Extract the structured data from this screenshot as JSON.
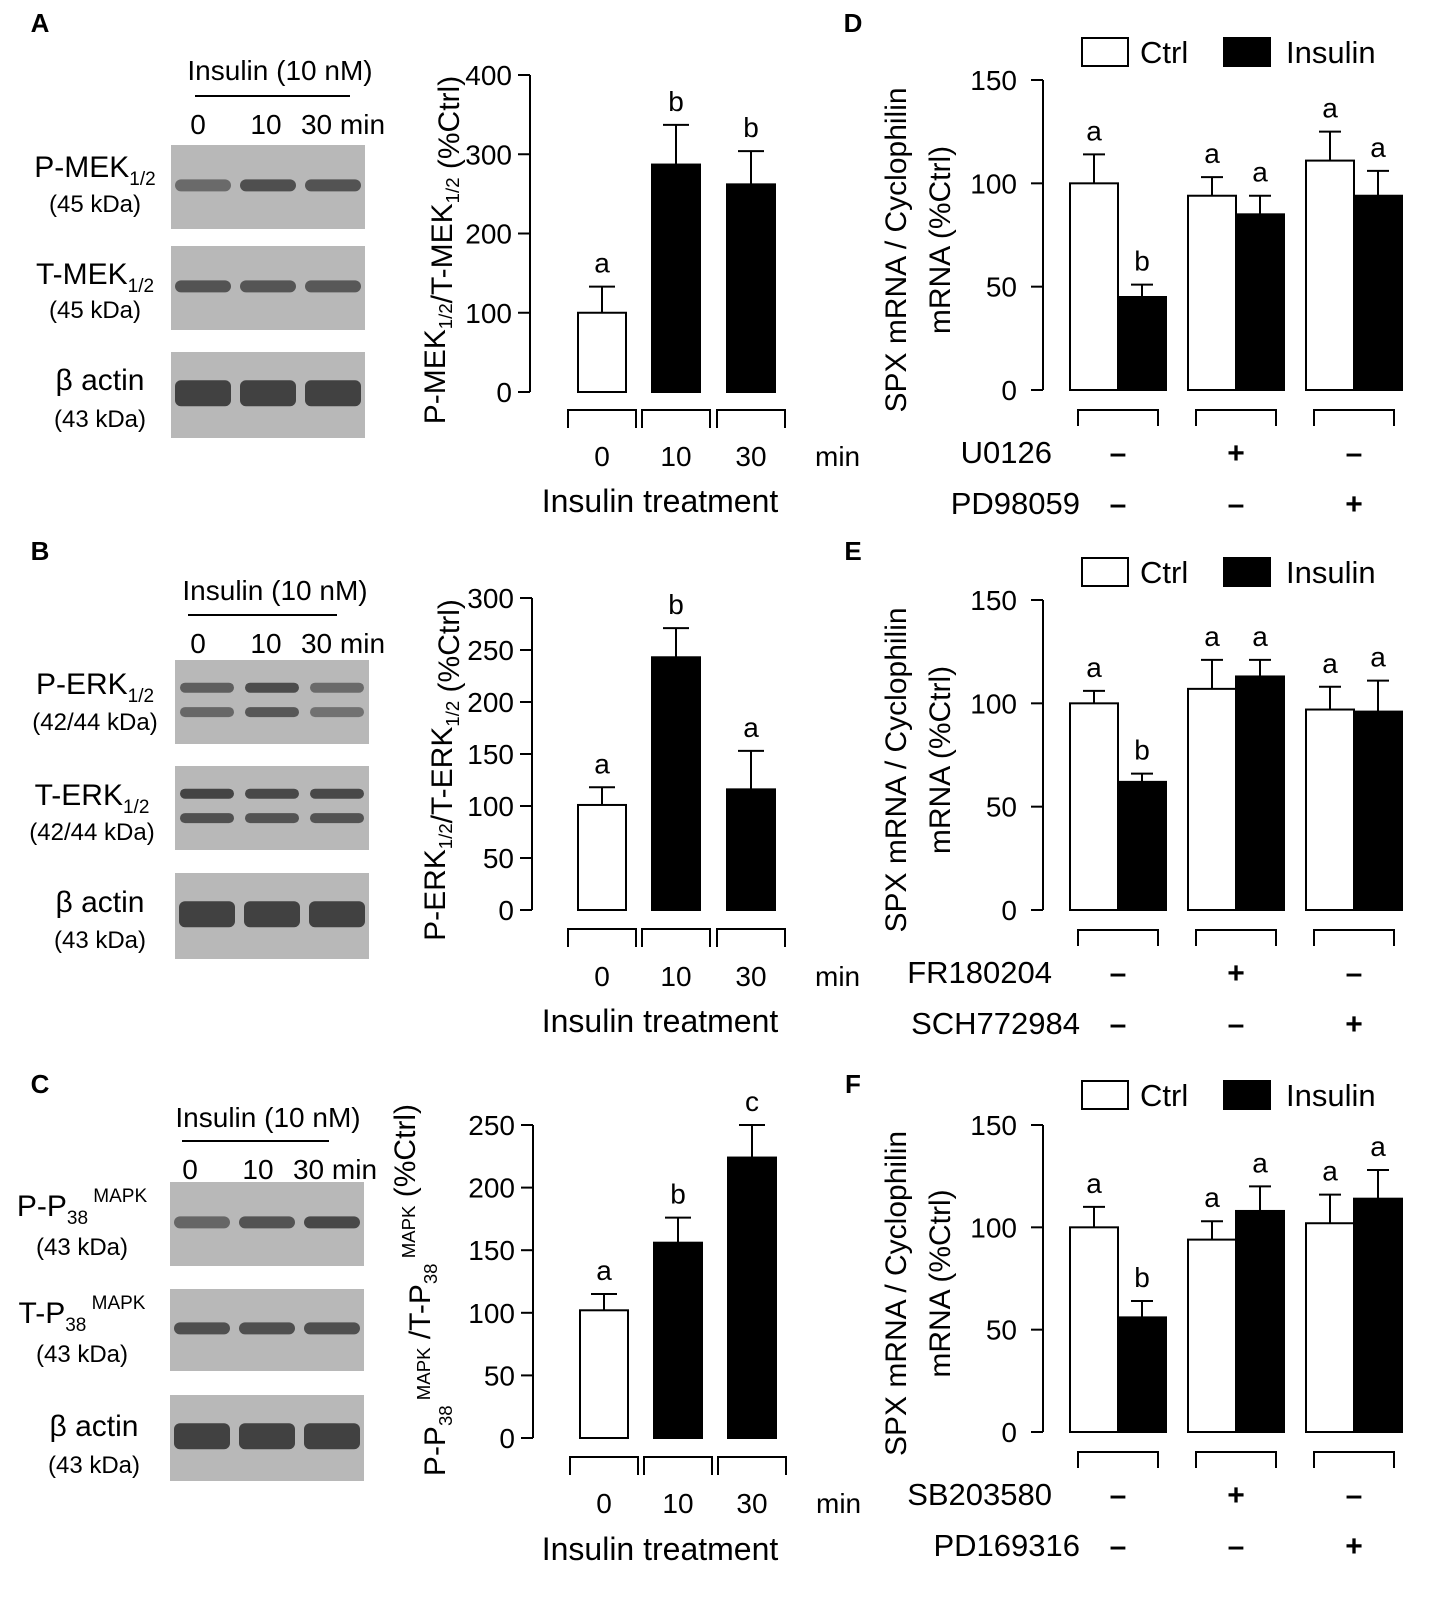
{
  "colors": {
    "ctrl": "#ffffff",
    "insulin": "#000000",
    "axis": "#000000",
    "band": "#3a3a3a",
    "blot_bg": "#b8b8b8"
  },
  "blot_panels": [
    {
      "letter": "A",
      "header": "Insulin (10 nM)",
      "lanes": [
        "0",
        "10",
        "30 min"
      ],
      "rows": [
        {
          "label": "P-MEK",
          "sub": "1/2",
          "sup": "",
          "kda": "(45 kDa)",
          "intensity": [
            0.45,
            0.8,
            0.75
          ],
          "double": false
        },
        {
          "label": "T-MEK",
          "sub": "1/2",
          "sup": "",
          "kda": "(45 kDa)",
          "intensity": [
            0.75,
            0.72,
            0.7
          ],
          "double": false
        },
        {
          "label": "β actin",
          "sub": "",
          "sup": "",
          "kda": "(43 kDa)",
          "intensity": [
            1,
            1,
            1
          ],
          "double": false
        }
      ]
    },
    {
      "letter": "B",
      "header": "Insulin (10 nM)",
      "lanes": [
        "0",
        "10",
        "30 min"
      ],
      "rows": [
        {
          "label": "P-ERK",
          "sub": "1/2",
          "sup": "",
          "kda": "(42/44 kDa)",
          "intensity": [
            0.6,
            0.85,
            0.45
          ],
          "double": true
        },
        {
          "label": "T-ERK",
          "sub": "1/2",
          "sup": "",
          "kda": "(42/44 kDa)",
          "intensity": [
            0.95,
            0.9,
            0.9
          ],
          "double": true
        },
        {
          "label": "β actin",
          "sub": "",
          "sup": "",
          "kda": "(43 kDa)",
          "intensity": [
            1,
            1,
            1
          ],
          "double": false
        }
      ]
    },
    {
      "letter": "C",
      "header": "Insulin (10 nM)",
      "lanes": [
        "0",
        "10",
        "30 min"
      ],
      "rows": [
        {
          "label": "P-P",
          "sub": "38",
          "sup": "MAPK",
          "kda": "(43 kDa)",
          "intensity": [
            0.5,
            0.75,
            0.9
          ],
          "double": false
        },
        {
          "label": "T-P",
          "sub": "38",
          "sup": "MAPK",
          "kda": "(43 kDa)",
          "intensity": [
            0.8,
            0.8,
            0.8
          ],
          "double": false
        },
        {
          "label": "β actin",
          "sub": "",
          "sup": "",
          "kda": "(43 kDa)",
          "intensity": [
            1,
            1,
            1
          ],
          "double": false
        }
      ]
    }
  ],
  "chart_data": [
    {
      "panel": "A",
      "type": "bar",
      "ylabel_parts": [
        {
          "t": "P-MEK"
        },
        {
          "t": "1/2",
          "sub": true
        },
        {
          "t": "/T-MEK"
        },
        {
          "t": "1/2",
          "sub": true
        },
        {
          "t": " (%Ctrl)"
        }
      ],
      "ylim": [
        0,
        400
      ],
      "yticks": [
        0,
        100,
        200,
        300,
        400
      ],
      "categories": [
        "0",
        "10",
        "30"
      ],
      "cat_unit": "min",
      "xlabel": "Insulin treatment",
      "values": [
        100,
        287,
        262
      ],
      "errors": [
        33,
        50,
        42
      ],
      "fills": [
        "ctrl",
        "insulin",
        "insulin"
      ],
      "letters": [
        "a",
        "b",
        "b"
      ]
    },
    {
      "panel": "B",
      "type": "bar",
      "ylabel_parts": [
        {
          "t": "P-ERK"
        },
        {
          "t": "1/2",
          "sub": true
        },
        {
          "t": "/T-ERK"
        },
        {
          "t": "1/2",
          "sub": true
        },
        {
          "t": " (%Ctrl)"
        }
      ],
      "ylim": [
        0,
        300
      ],
      "yticks": [
        0,
        50,
        100,
        150,
        200,
        250,
        300
      ],
      "categories": [
        "0",
        "10",
        "30"
      ],
      "cat_unit": "min",
      "xlabel": "Insulin treatment",
      "values": [
        101,
        243,
        116
      ],
      "errors": [
        17,
        28,
        37
      ],
      "fills": [
        "ctrl",
        "insulin",
        "insulin"
      ],
      "letters": [
        "a",
        "b",
        "a"
      ]
    },
    {
      "panel": "C",
      "type": "bar",
      "ylabel_parts": [
        {
          "t": "P-P"
        },
        {
          "t": "38",
          "sub": true
        },
        {
          "t": " MAPK",
          "sup": true
        },
        {
          "t": " /T-P"
        },
        {
          "t": "38",
          "sub": true
        },
        {
          "t": " MAPK",
          "sup": true
        },
        {
          "t": " (%Ctrl)"
        }
      ],
      "ylim": [
        0,
        250
      ],
      "yticks": [
        0,
        50,
        100,
        150,
        200,
        250
      ],
      "categories": [
        "0",
        "10",
        "30"
      ],
      "cat_unit": "min",
      "xlabel": "Insulin treatment",
      "values": [
        102,
        156,
        224
      ],
      "errors": [
        13,
        20,
        26
      ],
      "fills": [
        "ctrl",
        "insulin",
        "insulin"
      ],
      "letters": [
        "a",
        "b",
        "c"
      ]
    },
    {
      "panel": "D",
      "type": "bar",
      "ylabel_lines": [
        "SPX mRNA / Cyclophilin",
        "mRNA (%Ctrl)"
      ],
      "ylim": [
        0,
        150
      ],
      "yticks": [
        0,
        50,
        100,
        150
      ],
      "legend": {
        "ctrl": "Ctrl",
        "insulin": "Insulin"
      },
      "series": [
        {
          "name": "Ctrl",
          "values": [
            100,
            94,
            111
          ],
          "errors": [
            14,
            9,
            14
          ],
          "letters": [
            "a",
            "a",
            "a"
          ]
        },
        {
          "name": "Insulin",
          "values": [
            45,
            85,
            94
          ],
          "errors": [
            6,
            9,
            12
          ],
          "letters": [
            "b",
            "a",
            "a"
          ]
        }
      ],
      "treatments": [
        {
          "name": "U0126",
          "signs": [
            "–",
            "+",
            "–"
          ]
        },
        {
          "name": "PD98059",
          "signs": [
            "–",
            "–",
            "+"
          ]
        }
      ]
    },
    {
      "panel": "E",
      "type": "bar",
      "ylabel_lines": [
        "SPX mRNA / Cyclophilin",
        "mRNA (%Ctrl)"
      ],
      "ylim": [
        0,
        150
      ],
      "yticks": [
        0,
        50,
        100,
        150
      ],
      "legend": {
        "ctrl": "Ctrl",
        "insulin": "Insulin"
      },
      "series": [
        {
          "name": "Ctrl",
          "values": [
            100,
            107,
            97
          ],
          "errors": [
            6,
            14,
            11
          ],
          "letters": [
            "a",
            "a",
            "a"
          ]
        },
        {
          "name": "Insulin",
          "values": [
            62,
            113,
            96
          ],
          "errors": [
            4,
            8,
            15
          ],
          "letters": [
            "b",
            "a",
            "a"
          ]
        }
      ],
      "treatments": [
        {
          "name": "FR180204",
          "signs": [
            "–",
            "+",
            "–"
          ]
        },
        {
          "name": "SCH772984",
          "signs": [
            "–",
            "–",
            "+"
          ]
        }
      ]
    },
    {
      "panel": "F",
      "type": "bar",
      "ylabel_lines": [
        "SPX mRNA / Cyclophilin",
        "mRNA (%Ctrl)"
      ],
      "ylim": [
        0,
        150
      ],
      "yticks": [
        0,
        50,
        100,
        150
      ],
      "legend": {
        "ctrl": "Ctrl",
        "insulin": "Insulin"
      },
      "series": [
        {
          "name": "Ctrl",
          "values": [
            100,
            94,
            102
          ],
          "errors": [
            10,
            9,
            14
          ],
          "letters": [
            "a",
            "a",
            "a"
          ]
        },
        {
          "name": "Insulin",
          "values": [
            56,
            108,
            114
          ],
          "errors": [
            8,
            12,
            14
          ],
          "letters": [
            "b",
            "a",
            "a"
          ]
        }
      ],
      "treatments": [
        {
          "name": "SB203580",
          "signs": [
            "–",
            "+",
            "–"
          ]
        },
        {
          "name": "PD169316",
          "signs": [
            "–",
            "–",
            "+"
          ]
        }
      ]
    }
  ]
}
